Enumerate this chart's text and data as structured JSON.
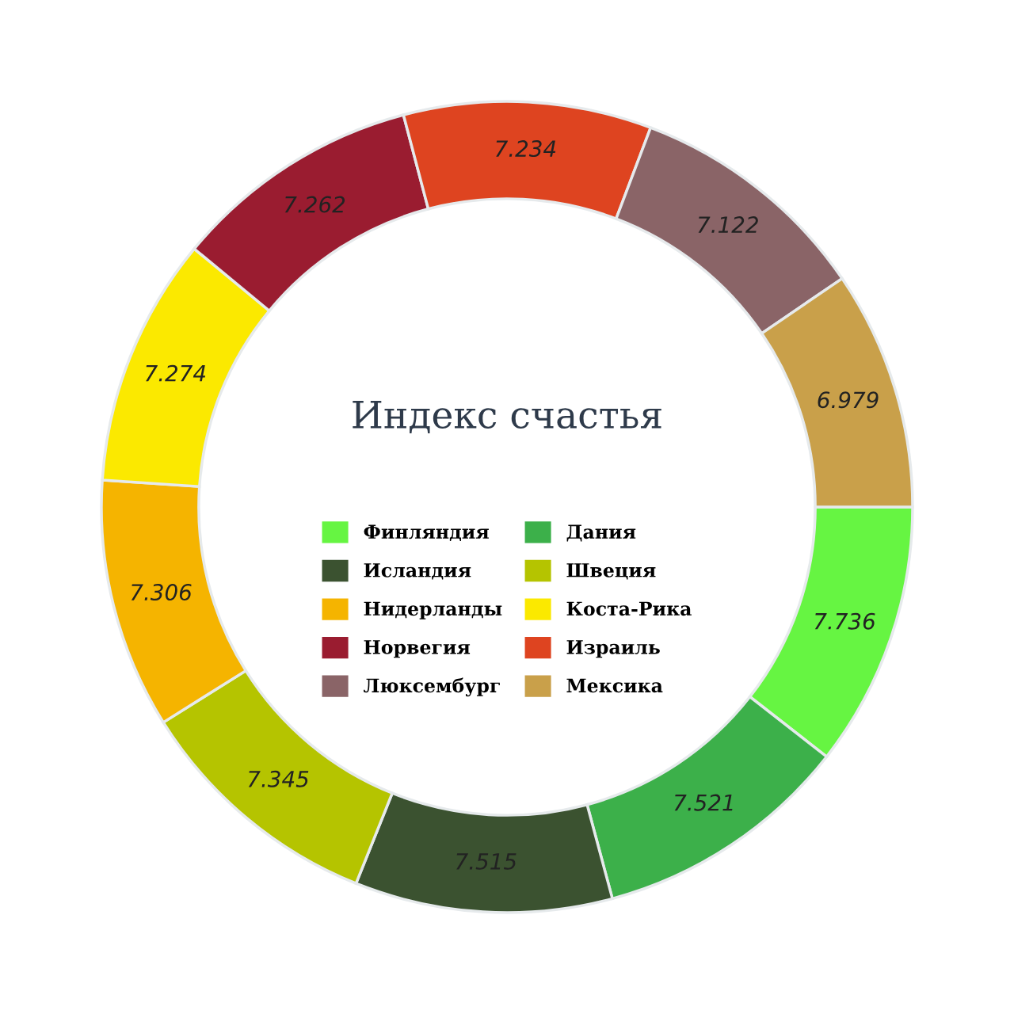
{
  "chart_data": {
    "type": "donut",
    "title": "Индекс счастья",
    "categories": [
      "Финляндия",
      "Дания",
      "Исландия",
      "Швеция",
      "Нидерланды",
      "Коста-Рика",
      "Норвегия",
      "Израиль",
      "Люксембург",
      "Мексика"
    ],
    "values": [
      7.736,
      7.521,
      7.515,
      7.345,
      7.306,
      7.274,
      7.262,
      7.234,
      7.122,
      6.979
    ],
    "colors": [
      "#66f542",
      "#3cb04a",
      "#3b5230",
      "#b5c400",
      "#f5b400",
      "#fbe900",
      "#9a1c30",
      "#de4420",
      "#8a6467",
      "#c9a04a"
    ],
    "data_labels": true,
    "legend": "center"
  }
}
